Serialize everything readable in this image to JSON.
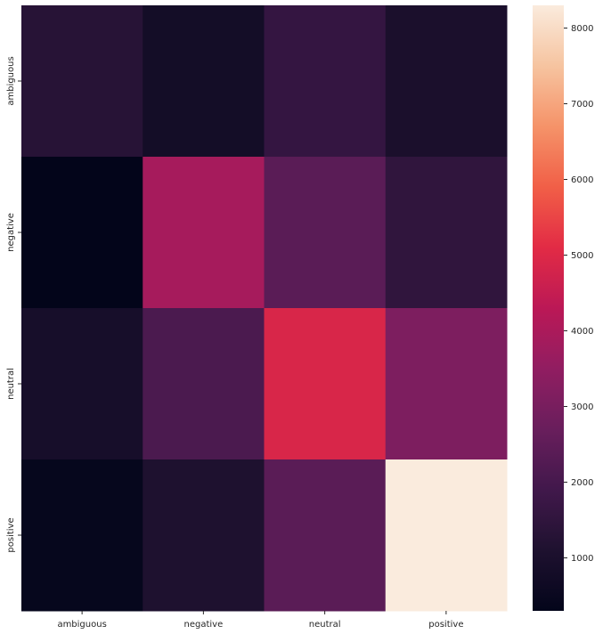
{
  "chart_data": {
    "type": "heatmap",
    "title": "",
    "xlabel": "",
    "ylabel": "",
    "x_categories": [
      "ambiguous",
      "negative",
      "neutral",
      "positive"
    ],
    "y_categories": [
      "ambiguous",
      "negative",
      "neutral",
      "positive"
    ],
    "values": [
      [
        1300,
        800,
        1600,
        1000
      ],
      [
        300,
        3900,
        2400,
        1500
      ],
      [
        900,
        2100,
        4900,
        3100
      ],
      [
        400,
        1100,
        2400,
        8300
      ]
    ],
    "colorbar": {
      "min": 300,
      "max": 8300,
      "ticks": [
        1000,
        2000,
        3000,
        4000,
        5000,
        6000,
        7000,
        8000
      ],
      "colormap": "rocket"
    },
    "grid": false
  }
}
